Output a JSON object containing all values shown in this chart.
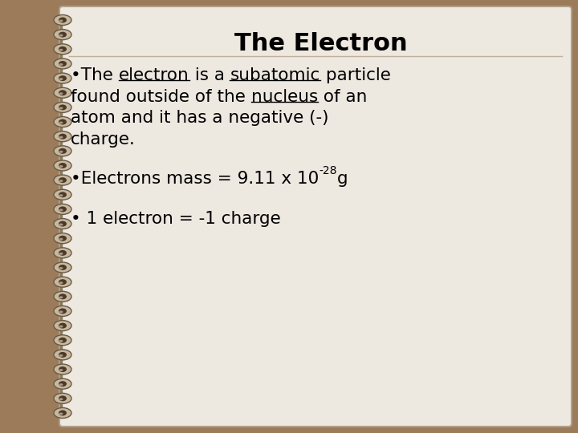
{
  "title": "The Electron",
  "background_outer": "#9B7B5A",
  "background_page": "#EDE8E0",
  "title_color": "#000000",
  "text_color": "#000000",
  "title_fontsize": 22,
  "body_fontsize": 15.5,
  "superscript_fontsize": 10,
  "spiral_color": "#7A6A50",
  "spiral_body_color": "#B8A898",
  "spiral_dark": "#3A3028",
  "separator_line_color": "#C0B09A",
  "bullet2_text": "•Electrons mass = 9.11 x 10",
  "bullet2_sup": "-28",
  "bullet2_end": "g",
  "bullet3_text": "• 1 electron = -1 charge"
}
